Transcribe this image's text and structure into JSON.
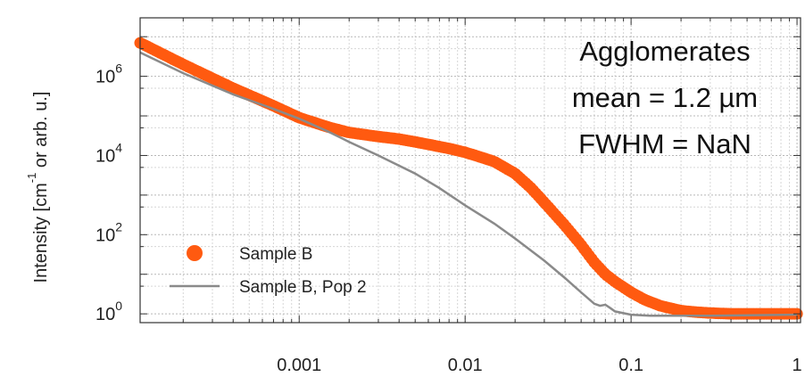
{
  "chart_data": {
    "type": "scatter",
    "title": "",
    "xlabel": "",
    "ylabel": "Intensity [cm",
    "ylabel_sup": "-1",
    "ylabel_tail": " or arb. u.]",
    "x_scale": "log",
    "y_scale": "log",
    "xlim": [
      0.00011,
      1.05
    ],
    "ylim": [
      0.6,
      30000000.0
    ],
    "x_ticks": [
      {
        "value": 0.001,
        "label": "0.001"
      },
      {
        "value": 0.01,
        "label": "0.01"
      },
      {
        "value": 0.1,
        "label": "0.1"
      },
      {
        "value": 1,
        "label": "1"
      }
    ],
    "y_ticks": [
      {
        "value": 1,
        "base": "10",
        "exp": "0"
      },
      {
        "value": 100,
        "base": "10",
        "exp": "2"
      },
      {
        "value": 10000,
        "base": "10",
        "exp": "4"
      },
      {
        "value": 1000000,
        "base": "10",
        "exp": "6"
      }
    ],
    "grid": true,
    "legend_position": "bottom-left",
    "annotations": [
      "Agglomerates",
      "mean = 1.2 µm",
      "FWHM = NaN"
    ],
    "series": [
      {
        "name": "Sample B",
        "style": "markers",
        "color": "#ff5a10",
        "x": [
          0.00011,
          0.0002,
          0.0004,
          0.0007,
          0.001,
          0.0015,
          0.002,
          0.003,
          0.004,
          0.005,
          0.006,
          0.008,
          0.01,
          0.012,
          0.015,
          0.02,
          0.025,
          0.03,
          0.04,
          0.05,
          0.06,
          0.07,
          0.08,
          0.1,
          0.12,
          0.15,
          0.2,
          0.25,
          0.3,
          0.4,
          0.5,
          0.7,
          1.0
        ],
        "y": [
          7000000,
          2000000,
          500000,
          180000,
          90000,
          52000,
          38000,
          30000,
          26000,
          22000,
          19000,
          15000,
          12000,
          9500,
          7000,
          3500,
          1500,
          650,
          170,
          55,
          20,
          10,
          6.5,
          3.5,
          2.3,
          1.6,
          1.2,
          1.1,
          1.05,
          1.0,
          1.0,
          1.0,
          1.0
        ]
      },
      {
        "name": "Sample B, Pop 2",
        "style": "line",
        "color": "#8a8a8a",
        "x": [
          0.00011,
          0.0002,
          0.0004,
          0.0007,
          0.001,
          0.0015,
          0.002,
          0.003,
          0.005,
          0.007,
          0.01,
          0.015,
          0.02,
          0.03,
          0.04,
          0.05,
          0.06,
          0.065,
          0.07,
          0.075,
          0.08,
          0.1,
          0.13,
          0.2,
          0.3,
          0.5,
          1.0
        ],
        "y": [
          4000000,
          1200000,
          350000,
          150000,
          85000,
          40000,
          22000,
          10000,
          3500,
          1500,
          550,
          190,
          80,
          22,
          8,
          3.5,
          1.8,
          1.6,
          1.7,
          1.4,
          1.15,
          0.95,
          0.9,
          0.9,
          0.9,
          0.92,
          0.95
        ]
      }
    ]
  }
}
